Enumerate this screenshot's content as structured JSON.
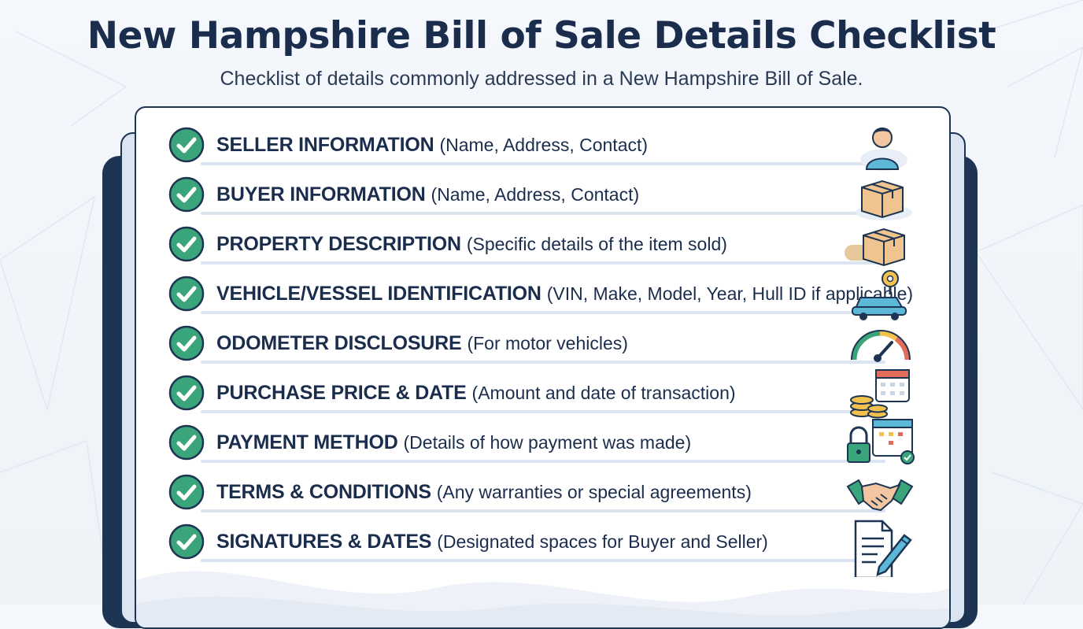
{
  "header": {
    "title": "New Hampshire Bill of Sale Details Checklist",
    "subtitle": "Checklist of details commonly addressed in a New Hampshire Bill of Sale."
  },
  "items": [
    {
      "label": "SELLER INFORMATION",
      "detail": "(Name, Address, Contact)",
      "icon": "person-icon"
    },
    {
      "label": "BUYER INFORMATION",
      "detail": "(Name, Address, Contact)",
      "icon": "box-icon"
    },
    {
      "label": "PROPERTY DESCRIPTION",
      "detail": "(Specific details of the item sold)",
      "icon": "package-icon"
    },
    {
      "label": "VEHICLE/VESSEL IDENTIFICATION",
      "detail": "(VIN, Make, Model, Year, Hull ID if applicable)",
      "icon": "car-key-icon"
    },
    {
      "label": "ODOMETER DISCLOSURE",
      "detail": "(For motor vehicles)",
      "icon": "gauge-icon"
    },
    {
      "label": "PURCHASE PRICE & DATE",
      "detail": "(Amount and date of transaction)",
      "icon": "coins-calendar-icon"
    },
    {
      "label": "PAYMENT METHOD",
      "detail": "(Details of how payment was made)",
      "icon": "lock-calendar-icon"
    },
    {
      "label": "TERMS & CONDITIONS",
      "detail": "(Any warranties or special agreements)",
      "icon": "handshake-icon"
    },
    {
      "label": "SIGNATURES & DATES",
      "detail": "(Designated spaces for Buyer and Seller)",
      "icon": "document-pen-icon"
    }
  ],
  "colors": {
    "navy": "#1b2d4d",
    "check_green": "#3aa57a",
    "check_ring": "#1d3452",
    "row_line": "#dbe5f1"
  }
}
